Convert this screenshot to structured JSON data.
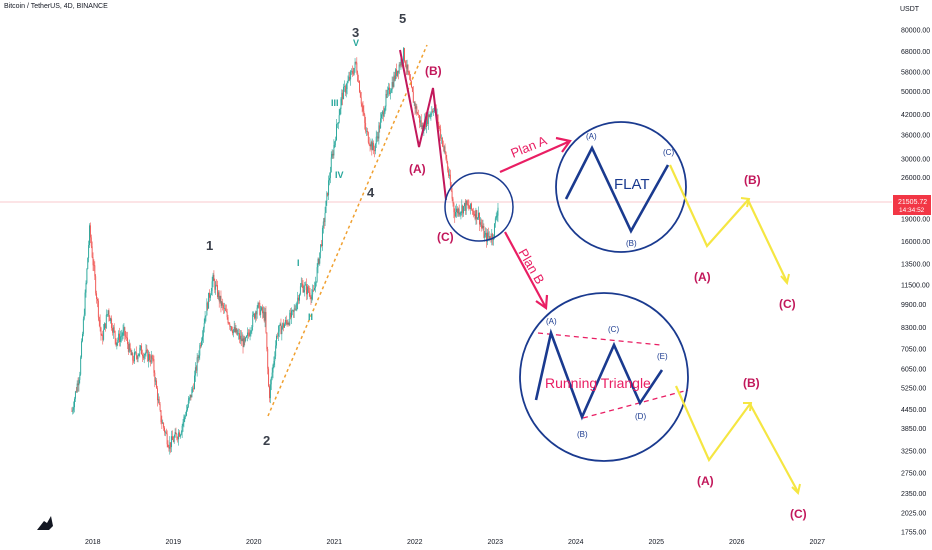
{
  "header": {
    "title": "Bitcoin / TetherUS, 4D, BINANCE"
  },
  "price_tag": {
    "price": "21505.72",
    "countdown": "14:34:52",
    "color": "#f23645"
  },
  "colors": {
    "up": "#26a69a",
    "down": "#ef5350",
    "projection": "#1a3a8f",
    "alternate": "#f5e642",
    "plan": "#e91e63",
    "wave_red": "#c2185b",
    "trendline": "#f0a030"
  },
  "chart_data": {
    "type": "candlestick",
    "title": "Bitcoin / TetherUS, 4D, BINANCE",
    "y_unit": "USDT",
    "y_scale": "log",
    "grid": false,
    "x_ticks": [
      "2018",
      "2019",
      "2020",
      "2021",
      "2022",
      "2023",
      "2024",
      "2025",
      "2026",
      "2027"
    ],
    "y_ticks": [
      "80000.00",
      "68000.00",
      "58000.00",
      "50000.00",
      "42000.00",
      "36000.00",
      "30000.00",
      "26000.00",
      "21505.72",
      "19000.00",
      "16000.00",
      "13500.00",
      "11500.00",
      "9900.00",
      "8300.00",
      "7050.00",
      "6050.00",
      "5250.00",
      "4450.00",
      "3850.00",
      "3250.00",
      "2750.00",
      "2350.00",
      "2025.00",
      "1755.00"
    ],
    "price_path": [
      {
        "t": 2017.75,
        "p": 4400
      },
      {
        "t": 2017.85,
        "p": 6000
      },
      {
        "t": 2017.92,
        "p": 11000
      },
      {
        "t": 2017.97,
        "p": 17500
      },
      {
        "t": 2018.05,
        "p": 11000
      },
      {
        "t": 2018.12,
        "p": 7500
      },
      {
        "t": 2018.2,
        "p": 9500
      },
      {
        "t": 2018.3,
        "p": 7500
      },
      {
        "t": 2018.4,
        "p": 8000
      },
      {
        "t": 2018.5,
        "p": 6500
      },
      {
        "t": 2018.6,
        "p": 7000
      },
      {
        "t": 2018.75,
        "p": 6500
      },
      {
        "t": 2018.85,
        "p": 4200
      },
      {
        "t": 2018.96,
        "p": 3400
      },
      {
        "t": 2019.1,
        "p": 3800
      },
      {
        "t": 2019.25,
        "p": 5200
      },
      {
        "t": 2019.4,
        "p": 9000
      },
      {
        "t": 2019.5,
        "p": 12000
      },
      {
        "t": 2019.6,
        "p": 10000
      },
      {
        "t": 2019.75,
        "p": 8200
      },
      {
        "t": 2019.9,
        "p": 7300
      },
      {
        "t": 2020.05,
        "p": 9800
      },
      {
        "t": 2020.15,
        "p": 9000
      },
      {
        "t": 2020.2,
        "p": 4900
      },
      {
        "t": 2020.3,
        "p": 8000
      },
      {
        "t": 2020.5,
        "p": 9200
      },
      {
        "t": 2020.6,
        "p": 11500
      },
      {
        "t": 2020.75,
        "p": 10600
      },
      {
        "t": 2020.85,
        "p": 16000
      },
      {
        "t": 2020.97,
        "p": 29000
      },
      {
        "t": 2021.1,
        "p": 48000
      },
      {
        "t": 2021.28,
        "p": 62000
      },
      {
        "t": 2021.4,
        "p": 37000
      },
      {
        "t": 2021.5,
        "p": 32000
      },
      {
        "t": 2021.65,
        "p": 47000
      },
      {
        "t": 2021.87,
        "p": 67000
      },
      {
        "t": 2022.0,
        "p": 46000
      },
      {
        "t": 2022.1,
        "p": 38000
      },
      {
        "t": 2022.25,
        "p": 45000
      },
      {
        "t": 2022.4,
        "p": 30000
      },
      {
        "t": 2022.5,
        "p": 20000
      },
      {
        "t": 2022.65,
        "p": 21000
      },
      {
        "t": 2022.8,
        "p": 19500
      },
      {
        "t": 2022.88,
        "p": 16500
      },
      {
        "t": 2022.98,
        "p": 16700
      },
      {
        "t": 2023.05,
        "p": 21500
      }
    ],
    "annotations": {
      "impulse_major": [
        "1",
        "2",
        "3",
        "4",
        "5"
      ],
      "impulse_minor": [
        "I",
        "II",
        "III",
        "IV",
        "V"
      ],
      "correction_labels": [
        "(A)",
        "(B)",
        "(C)"
      ],
      "plan_a": {
        "label": "Plan A",
        "pattern": "FLAT",
        "points": [
          "(A)",
          "(B)",
          "(C)"
        ]
      },
      "plan_b": {
        "label": "Plan B",
        "pattern": "Running Triangle",
        "points": [
          "(A)",
          "(B)",
          "(C)",
          "(D)",
          "(E)"
        ]
      },
      "projection_a_labels": [
        "(A)",
        "(B)",
        "(C)"
      ],
      "projection_b_labels": [
        "(A)",
        "(B)",
        "(C)"
      ]
    }
  }
}
